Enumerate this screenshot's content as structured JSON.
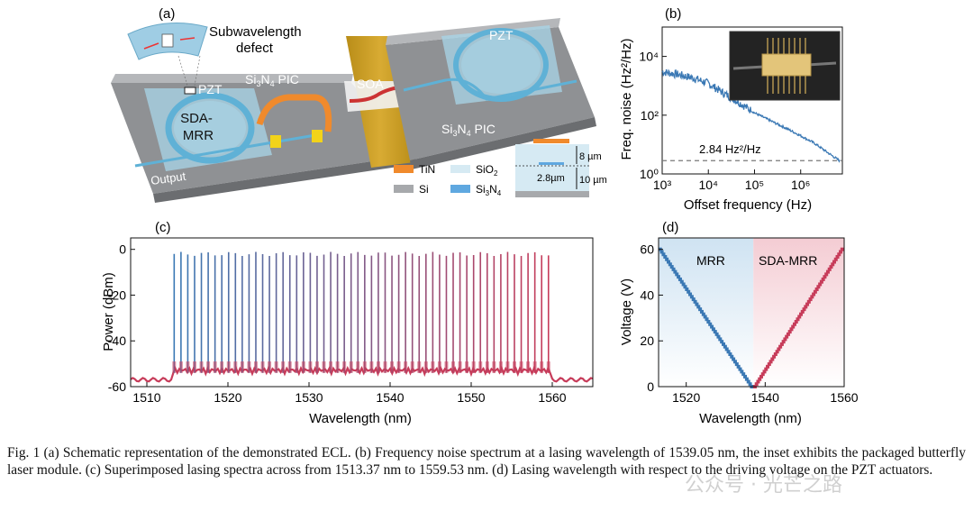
{
  "colors": {
    "blue": "#3a78b4",
    "red": "#c73c5a",
    "soa": "#c79a1e",
    "pic": "#a7a9ac",
    "mrrA": "#dbe9f4",
    "mrrB": "#f6dadf"
  },
  "panel_a": {
    "label": "(a)",
    "subwavelength": "Subwavelength",
    "defect": "defect",
    "pzt_left": "PZT",
    "pzt_right": "PZT",
    "sda": "SDA-",
    "mrr": "MRR",
    "pic_left": "Si",
    "pic_left_sub": "3",
    "pic_left_rest": "N",
    "pic_left_sub2": "4",
    "pic_left_end": " PIC",
    "pic_right": "Si",
    "pic_right_sub": "3",
    "pic_right_rest": "N",
    "pic_right_sub2": "4",
    "pic_right_end": " PIC",
    "soa": "SOA",
    "output": "Output",
    "legend_tin": "TiN",
    "legend_si": "Si",
    "legend_sio2": "SiO",
    "legend_sio2_sub": "2",
    "legend_sin": "Si",
    "legend_sin_sub1": "3",
    "legend_sin_mid": "N",
    "legend_sin_sub2": "4",
    "dim_8": "8 µm",
    "dim_28": "2.8µm",
    "dim_10": "10 µm"
  },
  "chart_data": [
    {
      "id": "b",
      "type": "line",
      "label": "(b)",
      "xlabel": "Offset frequency (Hz)",
      "ylabel": "Freq. noise (Hz²/Hz)",
      "xscale": "log",
      "yscale": "log",
      "xlim": [
        1000,
        8000000
      ],
      "ylim": [
        1,
        100000
      ],
      "xticks": [
        "10³",
        "10⁴",
        "10⁵",
        "10⁶"
      ],
      "yticks": [
        "10⁰",
        "10²",
        "10⁴"
      ],
      "reference_line": 2.84,
      "annotation": "2.84 Hz²/Hz",
      "x": [
        1000,
        2000,
        5000,
        10000,
        20000,
        50000,
        100000,
        200000,
        500000,
        1000000,
        2000000,
        5000000,
        7000000
      ],
      "y": [
        3000,
        2500,
        1800,
        1200,
        600,
        250,
        120,
        70,
        35,
        20,
        11,
        4,
        2.8
      ]
    },
    {
      "id": "c",
      "type": "line",
      "label": "(c)",
      "xlabel": "Wavelength (nm)",
      "ylabel": "Power (dBm)",
      "xlim": [
        1508,
        1565
      ],
      "ylim": [
        -60,
        5
      ],
      "xticks": [
        1510,
        1520,
        1530,
        1540,
        1550,
        1560
      ],
      "yticks": [
        0,
        -20,
        -40,
        -60
      ],
      "start_nm": 1513.37,
      "end_nm": 1559.53,
      "peak_count": 56,
      "peak_power_dBm": -2,
      "floor_dBm": -57
    },
    {
      "id": "d",
      "type": "scatter",
      "label": "(d)",
      "xlabel": "Wavelength (nm)",
      "ylabel": "Voltage (V)",
      "xlim": [
        1513,
        1560
      ],
      "ylim": [
        0,
        65
      ],
      "xticks": [
        1520,
        1540,
        1560
      ],
      "yticks": [
        0,
        20,
        40,
        60
      ],
      "region_left": "MRR",
      "region_right": "SDA-MRR",
      "split_nm": 1537.0,
      "series": [
        {
          "name": "MRR",
          "x_start": 1513.4,
          "x_end": 1536.6,
          "v_start": 60,
          "v_end": 0,
          "count": 56
        },
        {
          "name": "SDA-MRR",
          "x_start": 1537.4,
          "x_end": 1559.5,
          "v_start": 0,
          "v_end": 60,
          "count": 56
        }
      ]
    }
  ],
  "inset_b": "packaged butterfly laser module",
  "caption": "Fig. 1 (a) Schematic representation of the demonstrated ECL. (b) Frequency noise spectrum at a lasing wavelength of 1539.05 nm, the inset exhibits the packaged butterfly laser module. (c) Superimposed lasing spectra across from 1513.37 nm to 1559.53 nm. (d) Lasing wavelength with respect to the driving voltage on the PZT actuators.",
  "watermark": "公众号 · 光芒之路"
}
